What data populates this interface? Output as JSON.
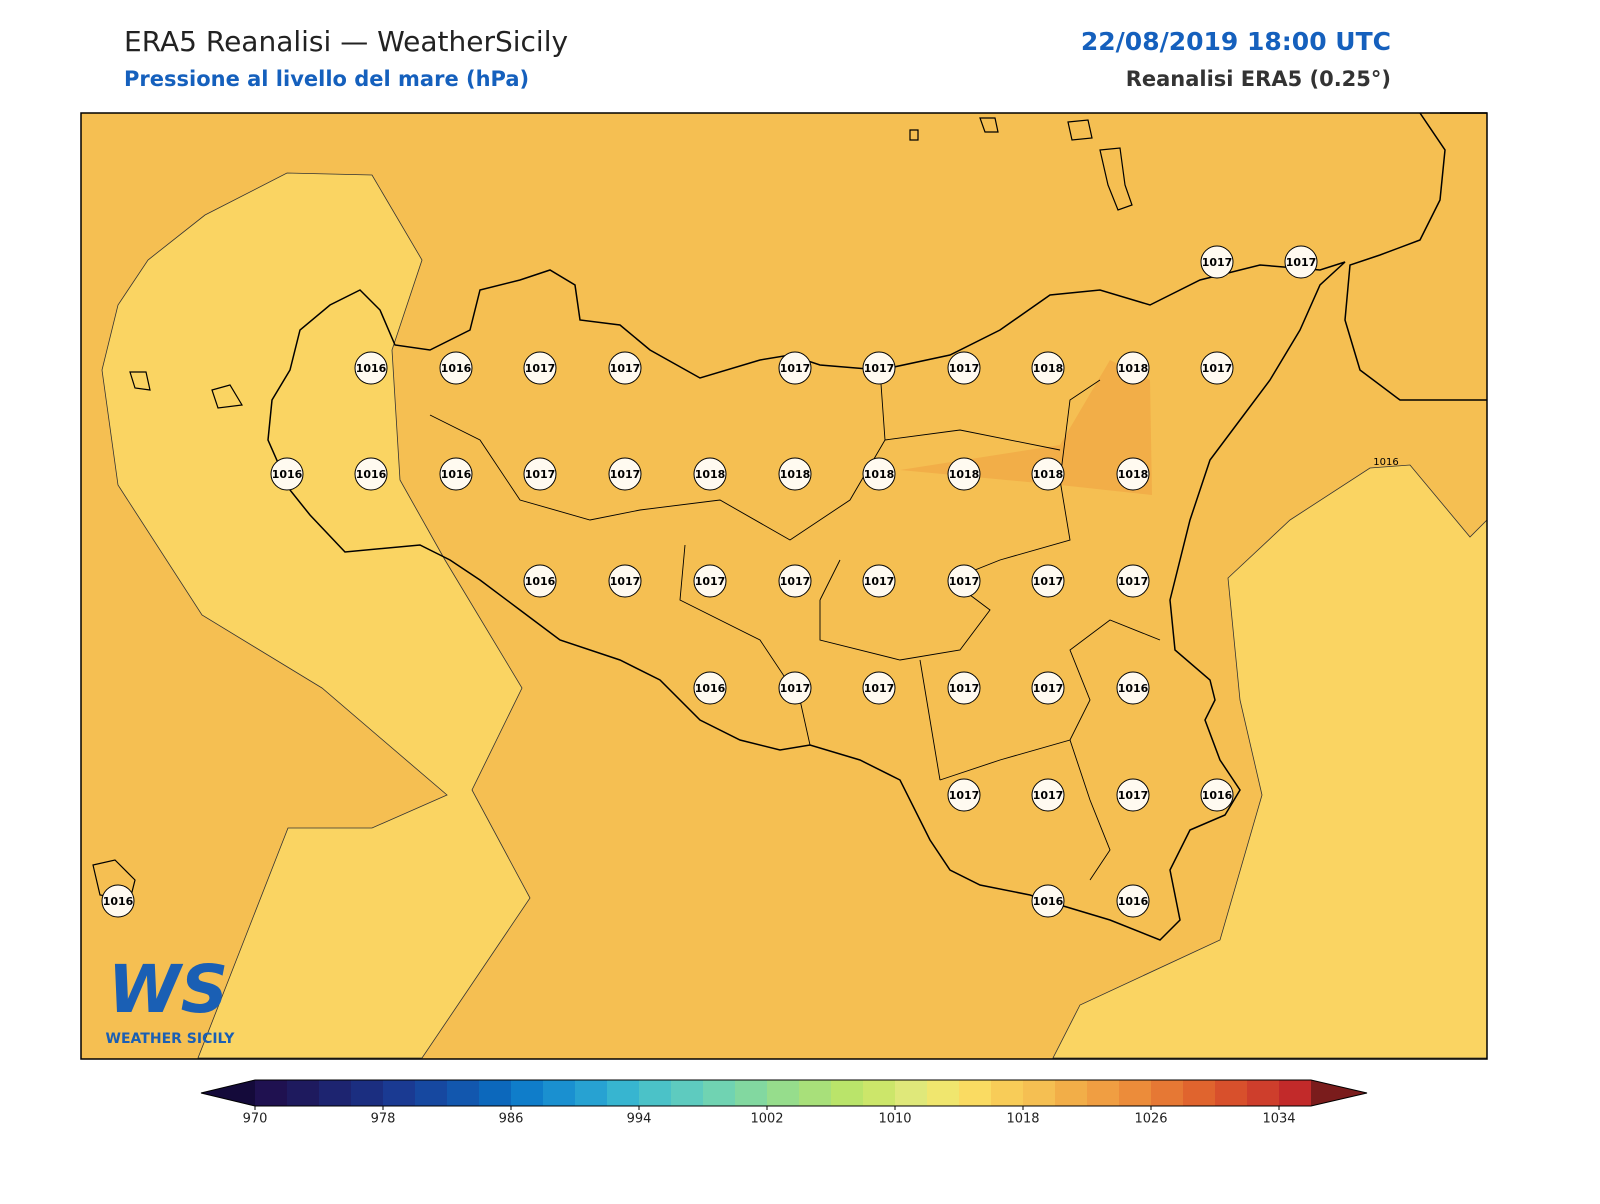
{
  "header": {
    "title": "ERA5 Reanalisi — WeatherSicily",
    "subtitle": "Pressione al livello del mare (hPa)",
    "date": "22/08/2019 18:00 UTC",
    "model": "Reanalisi ERA5 (0.25°)"
  },
  "map": {
    "stations": [
      1017,
      1017,
      1016,
      1016,
      1017,
      1017,
      1017,
      1017,
      1017,
      1018,
      1018,
      1017,
      1016,
      1016,
      1016,
      1017,
      1017,
      1018,
      1018,
      1018,
      1018,
      1018,
      1018,
      1016,
      1017,
      1017,
      1017,
      1017,
      1017,
      1017,
      1017,
      1016,
      1017,
      1017,
      1017,
      1017,
      1016,
      1017,
      1017,
      1017,
      1016,
      1016,
      1016,
      1016
    ],
    "contour_label": "1016",
    "logo": {
      "mark": "WS",
      "name": "WEATHER SICILY"
    }
  },
  "colorbar": {
    "range": [
      970,
      1036
    ],
    "ticks": [
      970,
      978,
      986,
      994,
      1002,
      1010,
      1018,
      1026,
      1034
    ],
    "colors": [
      "#1f1150",
      "#1e1a5e",
      "#1d2470",
      "#1b2e80",
      "#1a3a92",
      "#1648a0",
      "#1257ae",
      "#0c68bc",
      "#0f7dca",
      "#1a90d0",
      "#27a2d2",
      "#37b5d0",
      "#4bc2c8",
      "#5ecbbf",
      "#70d3b2",
      "#82d8a0",
      "#96dd8c",
      "#a8e07a",
      "#bae46a",
      "#cce66a",
      "#dfe87a",
      "#f0e66e",
      "#fadb62",
      "#f8cc58",
      "#f5bf52",
      "#f2ae48",
      "#f09e42",
      "#ec8c3a",
      "#e67834",
      "#e0642e",
      "#d8502c",
      "#ce3e2c",
      "#c22a2a"
    ],
    "under_color": "#140a3a",
    "over_color": "#7a1c1c"
  }
}
